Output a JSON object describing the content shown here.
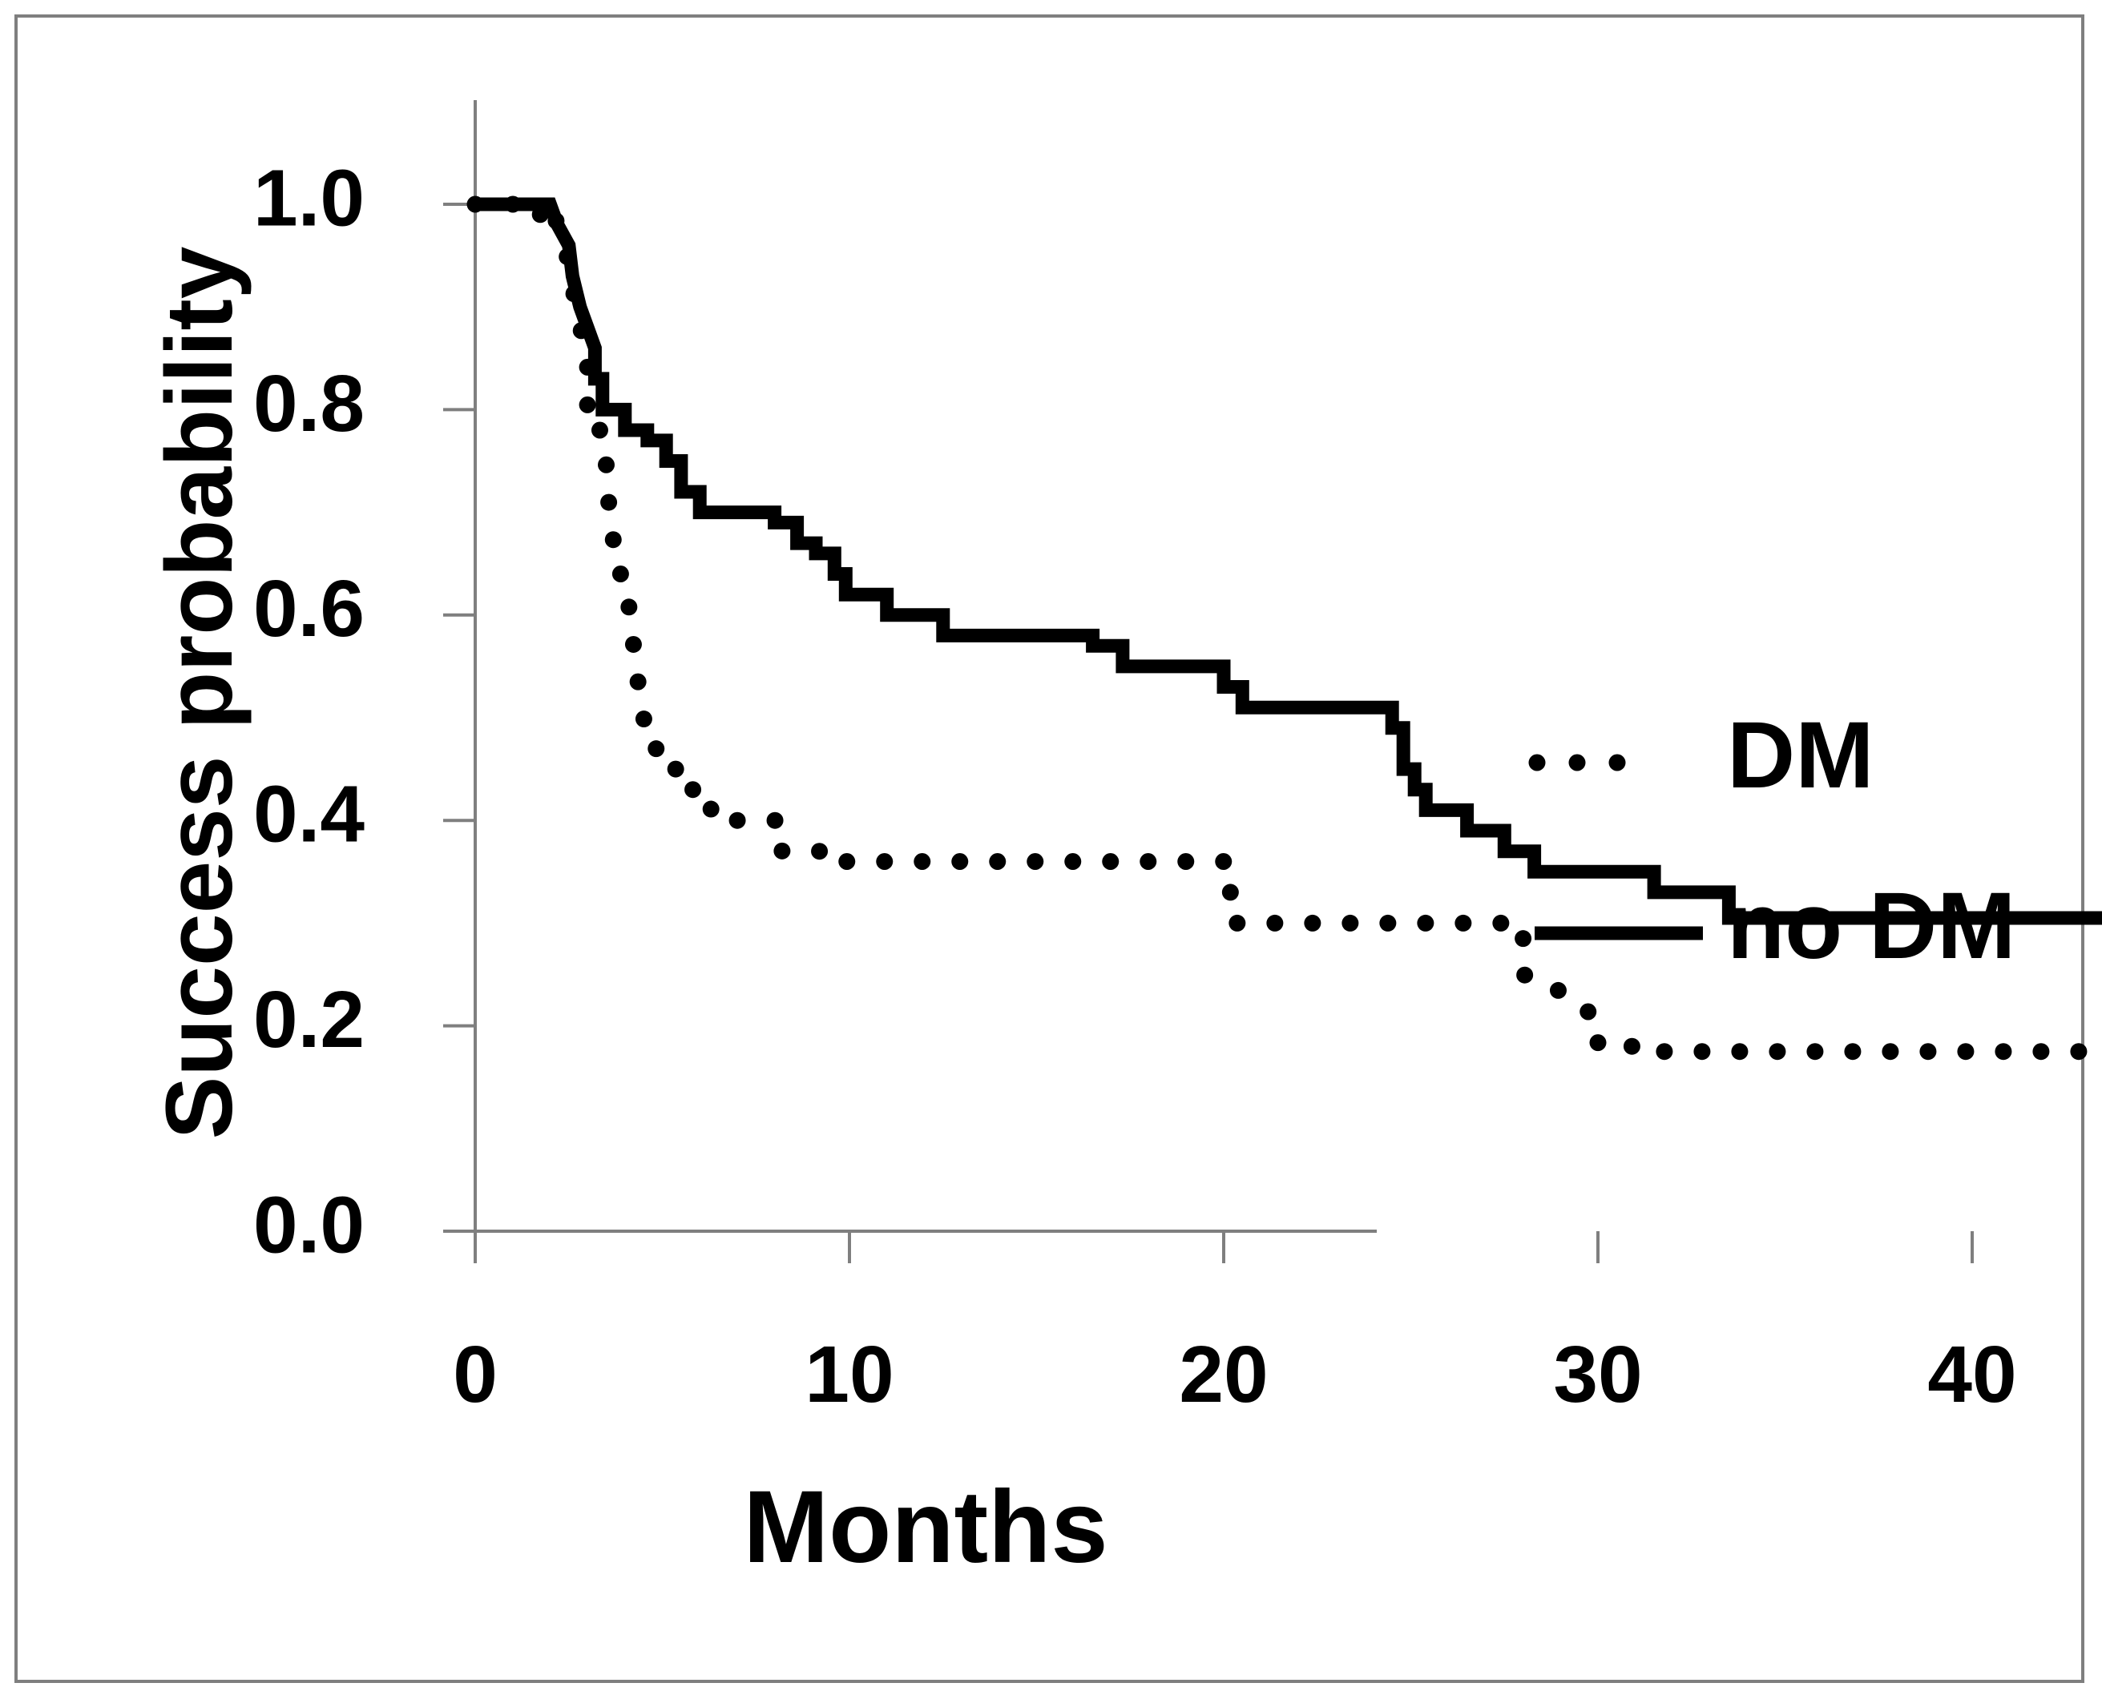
{
  "chart_data": {
    "type": "line",
    "title": "",
    "xlabel": "Months",
    "ylabel": "Success probability",
    "xlim": [
      0,
      48
    ],
    "ylim": [
      0,
      1.0
    ],
    "x_ticks": [
      0,
      10,
      20,
      30,
      40
    ],
    "x_tick_labels": [
      "0",
      "10",
      "20",
      "30",
      "40"
    ],
    "y_ticks": [
      0.0,
      0.2,
      0.4,
      0.6,
      0.8,
      1.0
    ],
    "y_tick_labels": [
      "0.0",
      "0.2",
      "0.4",
      "0.6",
      "0.8",
      "1.0"
    ],
    "grid": false,
    "legend_position": "right",
    "series": [
      {
        "name": "DM",
        "style": "dotted",
        "color": "#000000",
        "points": [
          [
            0,
            1.0
          ],
          [
            1.5,
            1.0
          ],
          [
            1.5,
            0.99
          ],
          [
            2.0,
            0.99
          ],
          [
            2.0,
            1.0
          ],
          [
            2.2,
            0.98
          ],
          [
            2.4,
            0.96
          ],
          [
            2.5,
            0.94
          ],
          [
            2.6,
            0.92
          ],
          [
            2.7,
            0.9
          ],
          [
            2.8,
            0.88
          ],
          [
            3.0,
            0.86
          ],
          [
            3.0,
            0.8
          ],
          [
            3.2,
            0.8
          ],
          [
            3.2,
            0.78
          ],
          [
            3.4,
            0.78
          ],
          [
            3.5,
            0.76
          ],
          [
            3.5,
            0.73
          ],
          [
            3.6,
            0.7
          ],
          [
            3.7,
            0.67
          ],
          [
            3.8,
            0.64
          ],
          [
            4.0,
            0.64
          ],
          [
            4.1,
            0.61
          ],
          [
            4.2,
            0.58
          ],
          [
            4.3,
            0.55
          ],
          [
            4.4,
            0.52
          ],
          [
            4.6,
            0.48
          ],
          [
            4.8,
            0.48
          ],
          [
            4.9,
            0.45
          ],
          [
            5.5,
            0.45
          ],
          [
            5.5,
            0.43
          ],
          [
            6.3,
            0.43
          ],
          [
            6.3,
            0.4
          ],
          [
            8.2,
            0.4
          ],
          [
            8.2,
            0.37
          ],
          [
            9.7,
            0.37
          ],
          [
            9.7,
            0.36
          ],
          [
            20.0,
            0.36
          ],
          [
            20.0,
            0.33
          ],
          [
            20.2,
            0.33
          ],
          [
            20.2,
            0.3
          ],
          [
            27.5,
            0.3
          ],
          [
            27.5,
            0.29
          ],
          [
            28.0,
            0.29
          ],
          [
            28.0,
            0.25
          ],
          [
            28.8,
            0.24
          ],
          [
            29.3,
            0.22
          ],
          [
            30.0,
            0.21
          ],
          [
            30.0,
            0.18
          ],
          [
            31.5,
            0.18
          ],
          [
            31.5,
            0.175
          ],
          [
            47.5,
            0.175
          ]
        ]
      },
      {
        "name": "no DM",
        "style": "solid",
        "color": "#000000",
        "points": [
          [
            0,
            1.0
          ],
          [
            2.0,
            1.0
          ],
          [
            2.2,
            0.98
          ],
          [
            2.5,
            0.96
          ],
          [
            2.6,
            0.93
          ],
          [
            2.8,
            0.9
          ],
          [
            3.0,
            0.88
          ],
          [
            3.2,
            0.86
          ],
          [
            3.2,
            0.83
          ],
          [
            3.4,
            0.83
          ],
          [
            3.4,
            0.8
          ],
          [
            4.0,
            0.8
          ],
          [
            4.0,
            0.78
          ],
          [
            4.6,
            0.78
          ],
          [
            4.6,
            0.77
          ],
          [
            5.1,
            0.77
          ],
          [
            5.1,
            0.75
          ],
          [
            5.5,
            0.75
          ],
          [
            5.5,
            0.72
          ],
          [
            6.0,
            0.72
          ],
          [
            6.0,
            0.7
          ],
          [
            8.0,
            0.7
          ],
          [
            8.0,
            0.69
          ],
          [
            8.6,
            0.69
          ],
          [
            8.6,
            0.67
          ],
          [
            9.1,
            0.67
          ],
          [
            9.1,
            0.66
          ],
          [
            9.6,
            0.66
          ],
          [
            9.6,
            0.64
          ],
          [
            9.9,
            0.64
          ],
          [
            9.9,
            0.62
          ],
          [
            11.0,
            0.62
          ],
          [
            11.0,
            0.6
          ],
          [
            12.5,
            0.6
          ],
          [
            12.5,
            0.58
          ],
          [
            16.5,
            0.58
          ],
          [
            16.5,
            0.57
          ],
          [
            17.3,
            0.57
          ],
          [
            17.3,
            0.55
          ],
          [
            20.0,
            0.55
          ],
          [
            20.0,
            0.53
          ],
          [
            20.5,
            0.53
          ],
          [
            20.5,
            0.51
          ],
          [
            24.5,
            0.51
          ],
          [
            24.5,
            0.49
          ],
          [
            24.8,
            0.49
          ],
          [
            24.8,
            0.45
          ],
          [
            25.1,
            0.45
          ],
          [
            25.1,
            0.43
          ],
          [
            25.4,
            0.43
          ],
          [
            25.4,
            0.41
          ],
          [
            26.5,
            0.41
          ],
          [
            26.5,
            0.39
          ],
          [
            27.5,
            0.39
          ],
          [
            27.5,
            0.37
          ],
          [
            28.3,
            0.37
          ],
          [
            28.3,
            0.35
          ],
          [
            31.5,
            0.35
          ],
          [
            31.5,
            0.33
          ],
          [
            33.5,
            0.33
          ],
          [
            33.5,
            0.305
          ],
          [
            48.0,
            0.305
          ]
        ]
      }
    ]
  }
}
